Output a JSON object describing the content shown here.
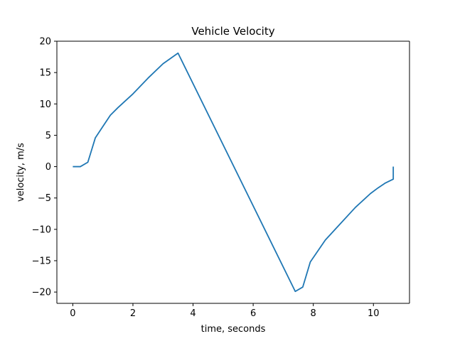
{
  "chart_data": {
    "type": "line",
    "title": "Vehicle Velocity",
    "xlabel": "time, seconds",
    "ylabel": "velocity, m/s",
    "xlim": [
      -0.53,
      11.2
    ],
    "ylim": [
      -21.8,
      20.0
    ],
    "x_ticks": [
      0,
      2,
      4,
      6,
      8,
      10
    ],
    "x_tick_labels": [
      "0",
      "2",
      "4",
      "6",
      "8",
      "10"
    ],
    "y_ticks": [
      -20,
      -15,
      -10,
      -5,
      0,
      5,
      10,
      15,
      20
    ],
    "y_tick_labels": [
      "−20",
      "−15",
      "−10",
      "−5",
      "0",
      "5",
      "10",
      "15",
      "20"
    ],
    "grid": false,
    "legend": "none",
    "series": [
      {
        "color": "#1f77b4",
        "x": [
          0,
          0.25,
          0.5,
          0.75,
          1.0,
          1.25,
          1.5,
          2.0,
          2.5,
          3.0,
          3.5,
          7.4,
          7.65,
          7.9,
          8.4,
          8.9,
          9.4,
          9.9,
          10.15,
          10.4,
          10.66,
          10.66,
          10.66
        ],
        "y": [
          0,
          0,
          0.7,
          4.6,
          6.4,
          8.2,
          9.4,
          11.6,
          14.1,
          16.4,
          18.1,
          -19.9,
          -19.2,
          -15.2,
          -11.7,
          -9.1,
          -6.5,
          -4.3,
          -3.4,
          -2.6,
          -2.0,
          -1.5,
          0
        ]
      }
    ]
  }
}
